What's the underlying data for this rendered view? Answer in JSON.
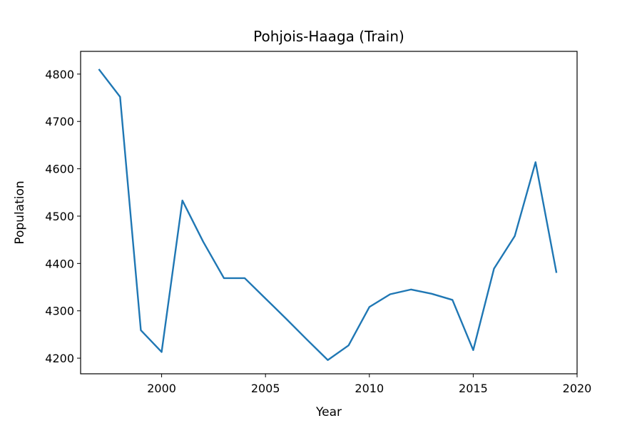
{
  "chart_data": {
    "type": "line",
    "title": "Pohjois-Haaga (Train)",
    "xlabel": "Year",
    "ylabel": "Population",
    "xlim": [
      1996.1,
      2020.0
    ],
    "ylim": [
      4167,
      4848
    ],
    "xticks": [
      2000,
      2005,
      2010,
      2015,
      2020
    ],
    "yticks": [
      4200,
      4300,
      4400,
      4500,
      4600,
      4700,
      4800
    ],
    "grid": false,
    "series": [
      {
        "color": "#1f77b4",
        "x": [
          1997,
          1998,
          1999,
          2000,
          2001,
          2002,
          2003,
          2004,
          2005,
          2006,
          2007,
          2008,
          2009,
          2010,
          2011,
          2012,
          2013,
          2014,
          2015,
          2016,
          2017,
          2018,
          2019
        ],
        "y": [
          4809,
          4752,
          4259,
          4213,
          4533,
          4446,
          4369,
          4369,
          4326,
          4283,
          4239,
          4196,
          4227,
          4308,
          4335,
          4345,
          4336,
          4323,
          4217,
          4389,
          4458,
          4614,
          4382
        ]
      }
    ]
  }
}
